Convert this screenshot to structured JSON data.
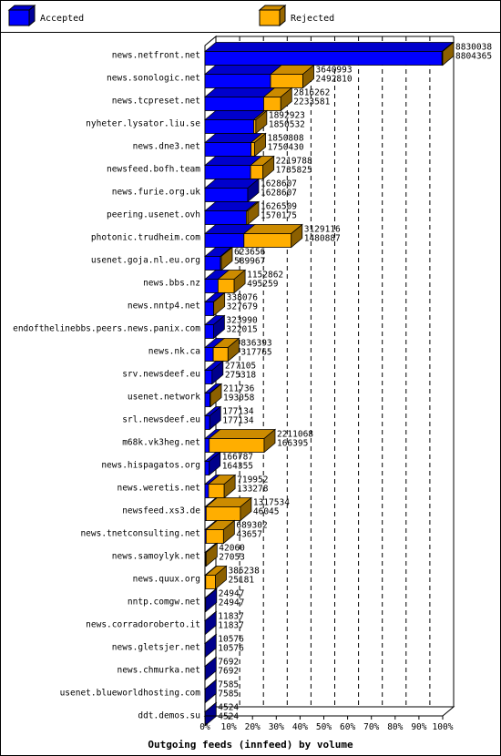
{
  "chart_data": {
    "type": "bar",
    "orientation": "horizontal",
    "stacked": true,
    "title": "Outgoing feeds (innfeed) by volume",
    "legend": {
      "position": "top",
      "items": [
        {
          "name": "Accepted",
          "color": "#0000ff"
        },
        {
          "name": "Rejected",
          "color": "#ffae00"
        }
      ]
    },
    "xlim": [
      0,
      100
    ],
    "x_ticks": [
      "0%",
      "10%",
      "20%",
      "30%",
      "40%",
      "50%",
      "60%",
      "70%",
      "80%",
      "90%",
      "100%"
    ],
    "categories": [
      "news.netfront.net",
      "news.sonologic.net",
      "news.tcpreset.net",
      "nyheter.lysator.liu.se",
      "news.dne3.net",
      "newsfeed.bofh.team",
      "news.furie.org.uk",
      "peering.usenet.ovh",
      "photonic.trudheim.com",
      "usenet.goja.nl.eu.org",
      "news.bbs.nz",
      "news.nntp4.net",
      "endofthelinebbs.peers.news.panix.com",
      "news.nk.ca",
      "srv.newsdeef.eu",
      "usenet.network",
      "srl.newsdeef.eu",
      "m68k.vk3heg.net",
      "news.hispagatos.org",
      "news.weretis.net",
      "newsfeed.xs3.de",
      "news.tnetconsulting.net",
      "news.samoylyk.net",
      "news.quux.org",
      "nntp.comgw.net",
      "news.corradoroberto.it",
      "news.gletsjer.net",
      "news.chmurka.net",
      "usenet.blueworldhosting.com",
      "ddt.demos.su"
    ],
    "offered": [
      "8830038",
      "3640993",
      "2816262",
      "1892923",
      "1850808",
      "2219788",
      "1628607",
      "1626509",
      "3129116",
      "623656",
      "1152862",
      "338076",
      "323990",
      "836393",
      "277105",
      "211736",
      "177134",
      "2211068",
      "166787",
      "719952",
      "1317534",
      "689302",
      "42060",
      "385238",
      "24947",
      "11837",
      "10576",
      "7692",
      "7585",
      "4524"
    ],
    "accepted": [
      "8804365",
      "2492810",
      "2233581",
      "1850532",
      "1750430",
      "1735825",
      "1628607",
      "1570175",
      "1480887",
      "589967",
      "495259",
      "327679",
      "322015",
      "317765",
      "275318",
      "193058",
      "177134",
      "166395",
      "164355",
      "133278",
      "46045",
      "43657",
      "27053",
      "25181",
      "24947",
      "11837",
      "10576",
      "7692",
      "7585",
      "4524"
    ],
    "series": [
      {
        "name": "Accepted",
        "color": "#0000ff",
        "values": [
          99.7,
          27.6,
          24.7,
          20.5,
          19.4,
          19.2,
          18.0,
          17.4,
          16.4,
          6.5,
          5.5,
          3.6,
          3.6,
          3.5,
          3.0,
          2.1,
          2.0,
          1.8,
          1.8,
          1.5,
          0.5,
          0.5,
          0.3,
          0.3,
          0.3,
          0.1,
          0.1,
          0.1,
          0.1,
          0.1
        ]
      },
      {
        "name": "Rejected",
        "color": "#ffae00",
        "values": [
          0.3,
          13.6,
          7.2,
          0.9,
          1.5,
          5.2,
          0.0,
          0.6,
          19.9,
          0.4,
          6.8,
          0.1,
          0.0,
          6.2,
          0.0,
          0.2,
          0.0,
          23.1,
          0.0,
          6.6,
          14.4,
          7.3,
          0.2,
          4.1,
          0.0,
          0.0,
          0.0,
          0.0,
          0.0,
          0.0
        ]
      }
    ]
  }
}
